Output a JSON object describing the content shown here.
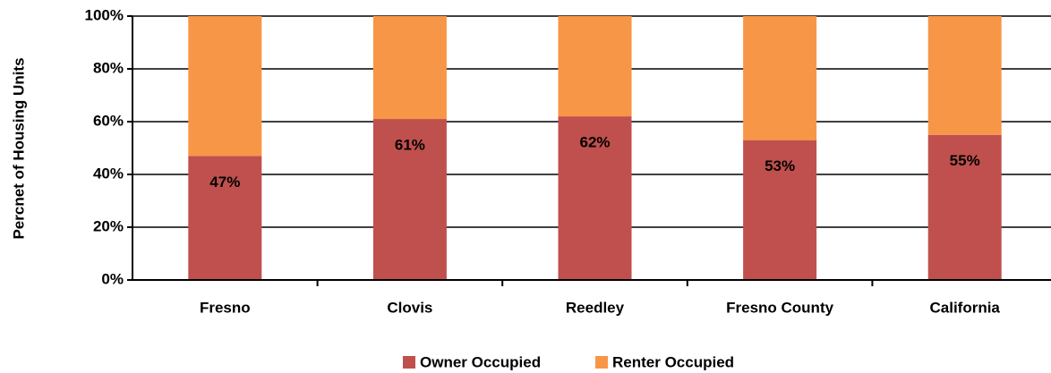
{
  "chart_data": {
    "type": "stacked_bar",
    "y_label": "Percnet of Housing Units",
    "categories": [
      "Fresno",
      "Clovis",
      "Reedley",
      "Fresno County",
      "California"
    ],
    "series": [
      {
        "name": "Owner Occupied",
        "color": "#c0504d",
        "values": [
          47,
          61,
          62,
          53,
          55
        ],
        "value_labels": [
          "47%",
          "61%",
          "62%",
          "53%",
          "55%"
        ]
      },
      {
        "name": "Renter Occupied",
        "color": "#f79646",
        "values": [
          53,
          39,
          38,
          47,
          45
        ]
      }
    ],
    "ylim": [
      0,
      100
    ],
    "yticks": [
      {
        "value": 0,
        "label": "0%"
      },
      {
        "value": 20,
        "label": "20%"
      },
      {
        "value": 40,
        "label": "40%"
      },
      {
        "value": 60,
        "label": "60%"
      },
      {
        "value": 80,
        "label": "80%"
      },
      {
        "value": 100,
        "label": "100%"
      }
    ],
    "grid": true,
    "legend": "bottom"
  }
}
